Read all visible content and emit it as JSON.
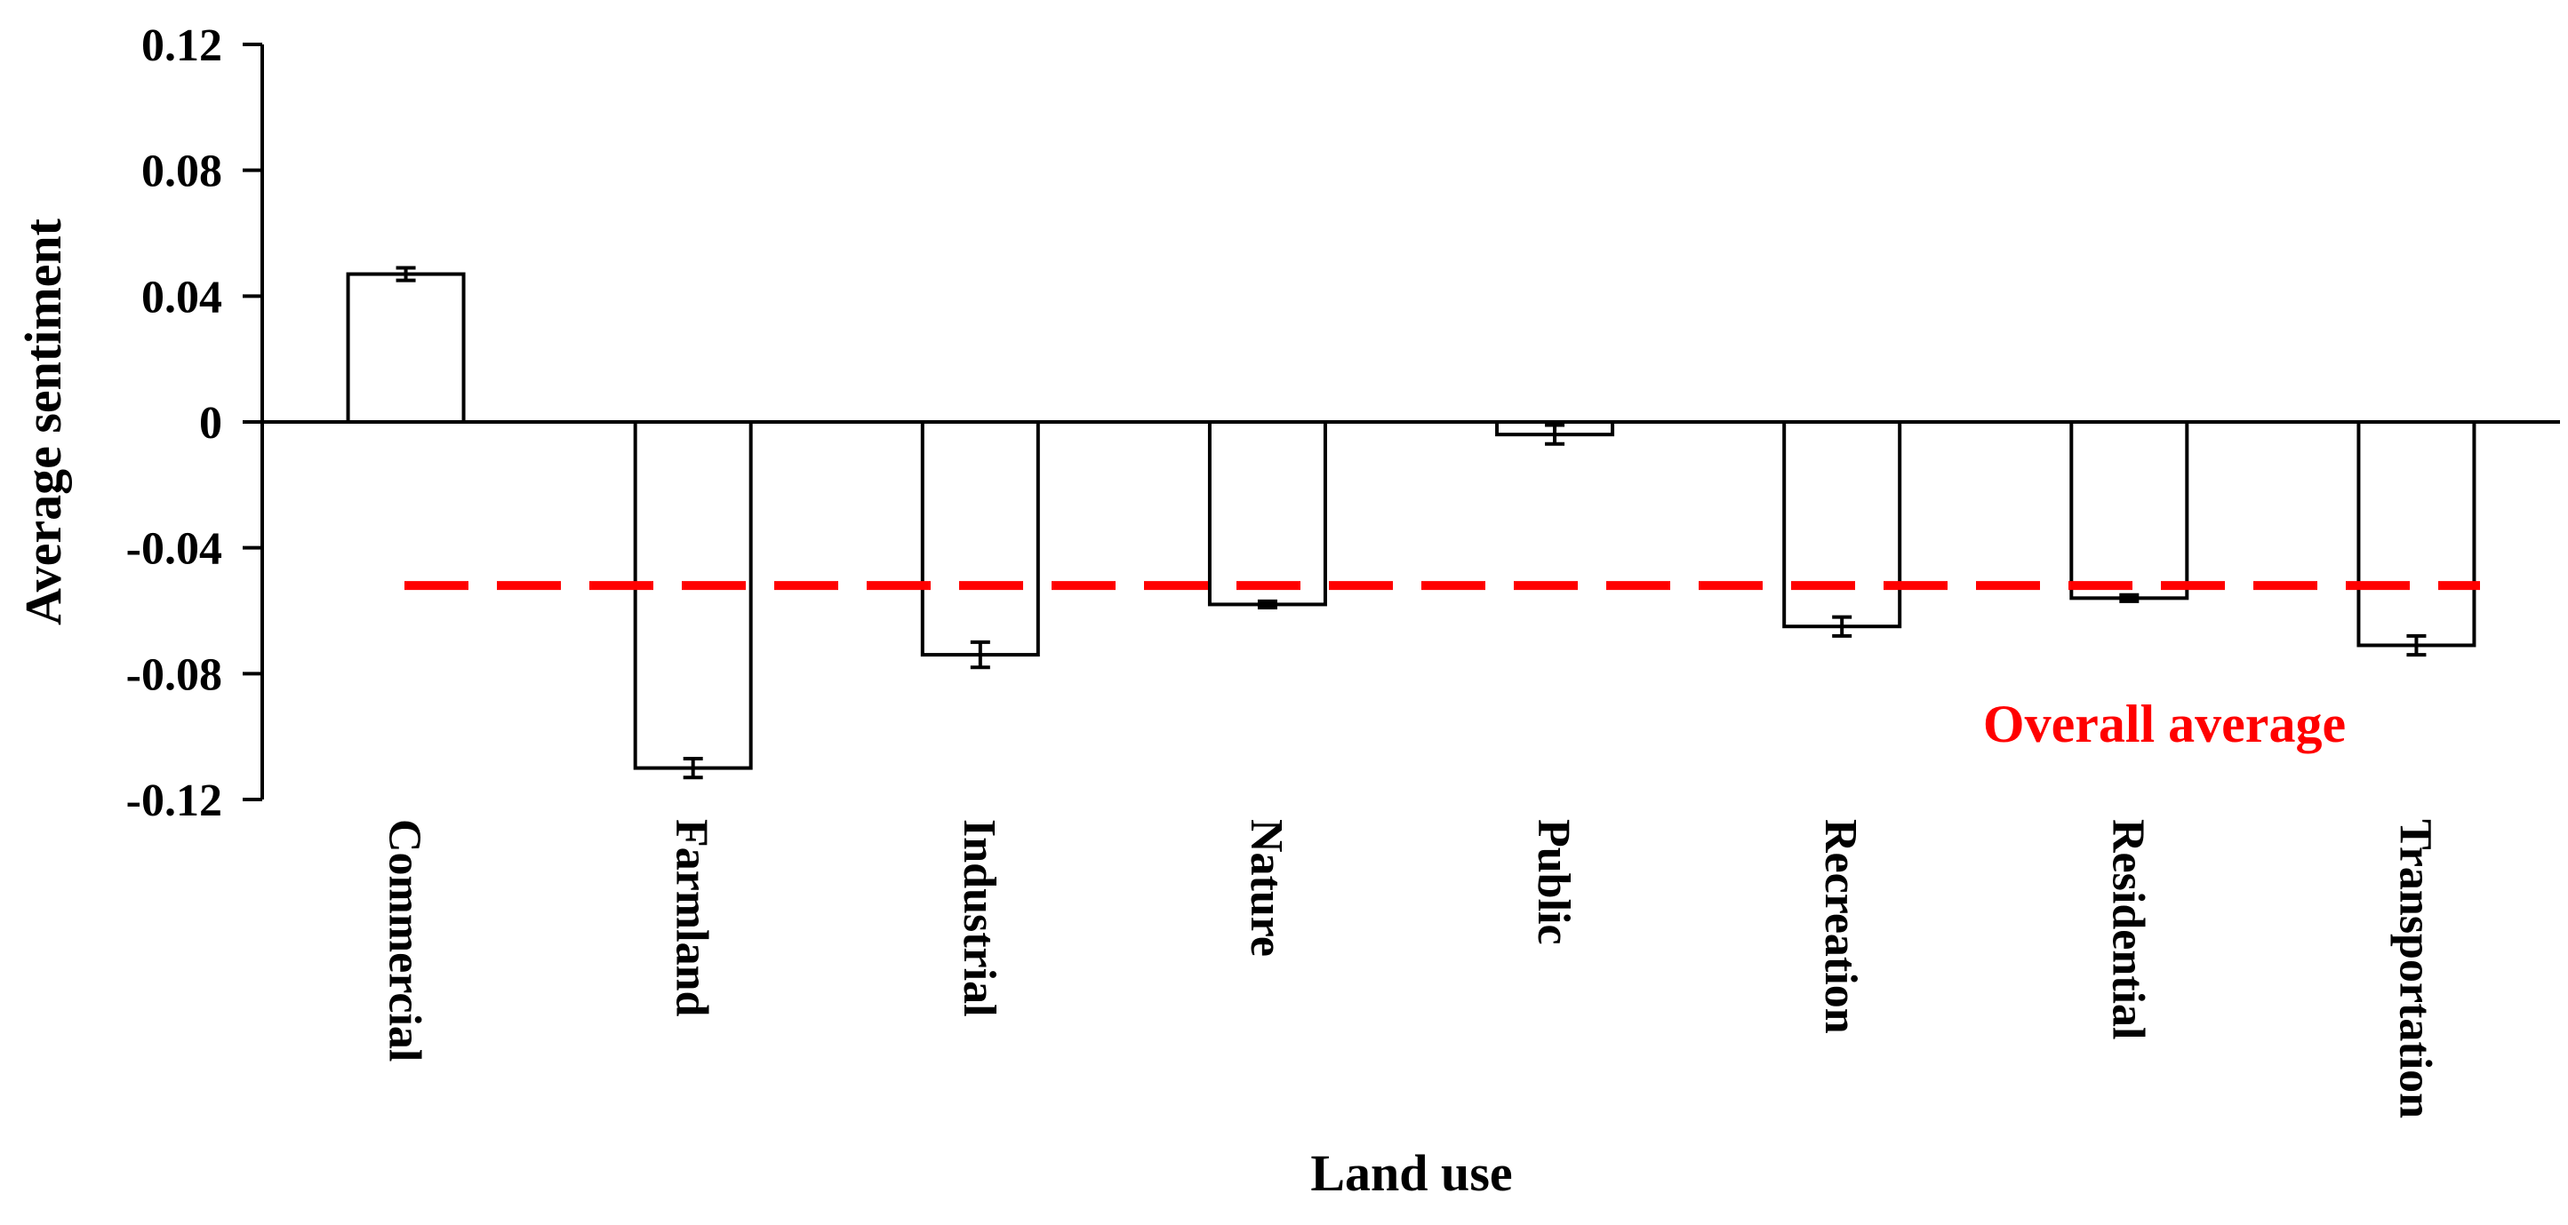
{
  "chart_data": {
    "type": "bar",
    "xlabel": "Land use",
    "ylabel": "Average sentiment",
    "ylim": [
      -0.12,
      0.12
    ],
    "yticks": [
      0.12,
      0.08,
      0.04,
      0,
      -0.04,
      -0.08,
      -0.12
    ],
    "ytick_labels": [
      "0.12",
      "0.08",
      "0.04",
      "0",
      "-0.04",
      "-0.08",
      "-0.12"
    ],
    "categories": [
      "Commercial",
      "Farmland",
      "Industrial",
      "Nature",
      "Public",
      "Recreation",
      "Residential",
      "Transportation"
    ],
    "values": [
      0.047,
      -0.11,
      -0.074,
      -0.058,
      -0.004,
      -0.065,
      -0.056,
      -0.071
    ],
    "errors": [
      0.002,
      0.003,
      0.004,
      0.001,
      0.003,
      0.003,
      0.001,
      0.003
    ],
    "bar_fill": "#ffffff",
    "bar_stroke": "#000000",
    "reference_line": {
      "label": "Overall average",
      "value": -0.052,
      "color": "#ff0000",
      "style": "dashed"
    },
    "grid": false,
    "legend": "none"
  }
}
